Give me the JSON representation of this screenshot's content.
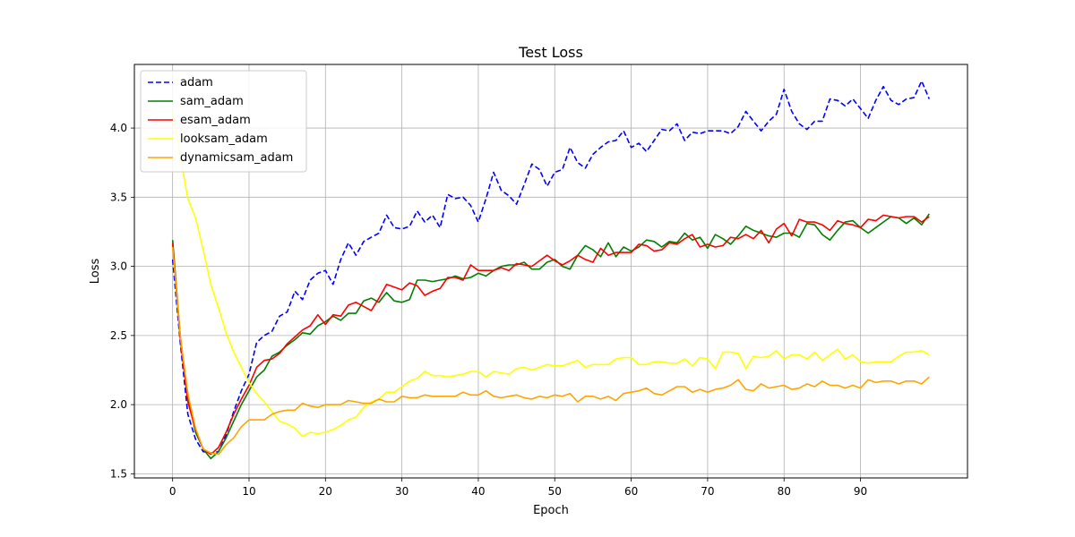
{
  "chart_data": {
    "type": "line",
    "title": "Test Loss",
    "xlabel": "Epoch",
    "ylabel": "Loss",
    "xlim": [
      -5,
      104
    ],
    "ylim": [
      1.47,
      4.46
    ],
    "xticks": [
      0,
      10,
      20,
      30,
      40,
      50,
      60,
      70,
      80,
      90
    ],
    "xtick_labels": [
      "0",
      "10",
      "20",
      "30",
      "40",
      "50",
      "60",
      "70",
      "80",
      "90"
    ],
    "yticks": [
      1.5,
      2.0,
      2.5,
      3.0,
      3.5,
      4.0
    ],
    "ytick_labels": [
      "1.5",
      "2.0",
      "2.5",
      "3.0",
      "3.5",
      "4.0"
    ],
    "grid": true,
    "legend_position": "upper-left",
    "series": [
      {
        "name": "adam",
        "color": "#0000ff",
        "style": "dashed",
        "values": [
          3.05,
          2.45,
          1.93,
          1.75,
          1.66,
          1.65,
          1.66,
          1.78,
          1.95,
          2.1,
          2.22,
          2.45,
          2.5,
          2.53,
          2.64,
          2.67,
          2.82,
          2.76,
          2.9,
          2.95,
          2.97,
          2.87,
          3.05,
          3.17,
          3.08,
          3.18,
          3.21,
          3.24,
          3.37,
          3.28,
          3.27,
          3.29,
          3.4,
          3.32,
          3.37,
          3.28,
          3.52,
          3.49,
          3.5,
          3.44,
          3.32,
          3.49,
          3.68,
          3.55,
          3.51,
          3.45,
          3.59,
          3.74,
          3.7,
          3.58,
          3.68,
          3.7,
          3.86,
          3.75,
          3.71,
          3.81,
          3.86,
          3.9,
          3.91,
          3.98,
          3.86,
          3.89,
          3.83,
          3.91,
          3.99,
          3.98,
          4.03,
          3.91,
          3.97,
          3.96,
          3.98,
          3.98,
          3.98,
          3.96,
          4.01,
          4.12,
          4.05,
          3.98,
          4.05,
          4.1,
          4.28,
          4.12,
          4.03,
          3.99,
          4.05,
          4.05,
          4.21,
          4.2,
          4.16,
          4.21,
          4.14,
          4.07,
          4.2,
          4.3,
          4.2,
          4.17,
          4.21,
          4.22,
          4.34,
          4.21
        ]
      },
      {
        "name": "sam_adam",
        "color": "#008000",
        "style": "solid",
        "values": [
          3.19,
          2.5,
          2.05,
          1.8,
          1.68,
          1.61,
          1.66,
          1.76,
          1.88,
          2.0,
          2.1,
          2.2,
          2.25,
          2.35,
          2.38,
          2.43,
          2.47,
          2.52,
          2.51,
          2.57,
          2.6,
          2.64,
          2.61,
          2.66,
          2.66,
          2.75,
          2.77,
          2.74,
          2.81,
          2.75,
          2.74,
          2.76,
          2.9,
          2.9,
          2.89,
          2.9,
          2.91,
          2.93,
          2.91,
          2.92,
          2.95,
          2.93,
          2.97,
          3.0,
          3.01,
          3.01,
          3.03,
          2.98,
          2.98,
          3.03,
          3.05,
          3.0,
          2.98,
          3.08,
          3.15,
          3.12,
          3.07,
          3.17,
          3.07,
          3.14,
          3.11,
          3.14,
          3.19,
          3.18,
          3.14,
          3.18,
          3.17,
          3.24,
          3.19,
          3.21,
          3.13,
          3.23,
          3.2,
          3.16,
          3.22,
          3.29,
          3.26,
          3.24,
          3.22,
          3.21,
          3.24,
          3.24,
          3.21,
          3.31,
          3.3,
          3.23,
          3.19,
          3.26,
          3.32,
          3.33,
          3.28,
          3.24,
          3.28,
          3.32,
          3.36,
          3.35,
          3.31,
          3.35,
          3.3,
          3.38
        ]
      },
      {
        "name": "esam_adam",
        "color": "#ff0000",
        "style": "solid",
        "values": [
          3.17,
          2.48,
          2.02,
          1.82,
          1.68,
          1.64,
          1.69,
          1.8,
          1.93,
          2.04,
          2.14,
          2.27,
          2.32,
          2.33,
          2.37,
          2.44,
          2.49,
          2.54,
          2.57,
          2.65,
          2.58,
          2.65,
          2.64,
          2.72,
          2.74,
          2.71,
          2.68,
          2.77,
          2.87,
          2.85,
          2.83,
          2.88,
          2.86,
          2.79,
          2.82,
          2.84,
          2.92,
          2.92,
          2.9,
          3.01,
          2.97,
          2.97,
          2.97,
          2.99,
          2.97,
          3.02,
          3.01,
          3.0,
          3.04,
          3.08,
          3.04,
          3.01,
          3.04,
          3.08,
          3.05,
          3.03,
          3.13,
          3.08,
          3.1,
          3.1,
          3.1,
          3.16,
          3.15,
          3.11,
          3.12,
          3.17,
          3.16,
          3.2,
          3.23,
          3.14,
          3.16,
          3.14,
          3.15,
          3.21,
          3.2,
          3.23,
          3.2,
          3.26,
          3.17,
          3.27,
          3.31,
          3.22,
          3.34,
          3.32,
          3.32,
          3.3,
          3.26,
          3.33,
          3.31,
          3.3,
          3.28,
          3.34,
          3.33,
          3.37,
          3.36,
          3.35,
          3.36,
          3.36,
          3.32,
          3.36
        ]
      },
      {
        "name": "looksam_adam",
        "color": "#ffff00",
        "style": "solid",
        "values": [
          4.12,
          3.8,
          3.49,
          3.35,
          3.12,
          2.87,
          2.7,
          2.52,
          2.38,
          2.27,
          2.16,
          2.08,
          2.02,
          1.95,
          1.88,
          1.86,
          1.83,
          1.77,
          1.8,
          1.79,
          1.8,
          1.82,
          1.85,
          1.89,
          1.91,
          1.98,
          2.02,
          2.04,
          2.09,
          2.09,
          2.13,
          2.17,
          2.19,
          2.24,
          2.21,
          2.21,
          2.2,
          2.21,
          2.22,
          2.24,
          2.24,
          2.2,
          2.24,
          2.23,
          2.22,
          2.26,
          2.27,
          2.25,
          2.27,
          2.29,
          2.28,
          2.28,
          2.3,
          2.32,
          2.27,
          2.29,
          2.29,
          2.29,
          2.33,
          2.34,
          2.34,
          2.29,
          2.29,
          2.31,
          2.31,
          2.3,
          2.3,
          2.33,
          2.28,
          2.34,
          2.33,
          2.26,
          2.38,
          2.38,
          2.37,
          2.26,
          2.35,
          2.34,
          2.35,
          2.39,
          2.33,
          2.36,
          2.36,
          2.33,
          2.38,
          2.32,
          2.36,
          2.4,
          2.33,
          2.36,
          2.31,
          2.3,
          2.31,
          2.31,
          2.31,
          2.35,
          2.38,
          2.38,
          2.39,
          2.36
        ]
      },
      {
        "name": "dynamicsam_adam",
        "color": "#ffa500",
        "style": "solid",
        "values": [
          3.14,
          2.5,
          2.08,
          1.83,
          1.68,
          1.65,
          1.64,
          1.71,
          1.76,
          1.84,
          1.89,
          1.89,
          1.89,
          1.93,
          1.95,
          1.96,
          1.96,
          2.01,
          1.99,
          1.98,
          2.0,
          2.0,
          2.0,
          2.03,
          2.02,
          2.01,
          2.01,
          2.04,
          2.02,
          2.02,
          2.06,
          2.05,
          2.05,
          2.07,
          2.06,
          2.06,
          2.06,
          2.06,
          2.09,
          2.07,
          2.07,
          2.1,
          2.06,
          2.05,
          2.06,
          2.07,
          2.05,
          2.04,
          2.06,
          2.05,
          2.07,
          2.06,
          2.08,
          2.02,
          2.06,
          2.06,
          2.04,
          2.06,
          2.03,
          2.08,
          2.09,
          2.1,
          2.12,
          2.08,
          2.07,
          2.1,
          2.13,
          2.13,
          2.09,
          2.11,
          2.09,
          2.11,
          2.12,
          2.14,
          2.18,
          2.11,
          2.1,
          2.15,
          2.12,
          2.13,
          2.14,
          2.11,
          2.12,
          2.15,
          2.13,
          2.17,
          2.14,
          2.14,
          2.12,
          2.14,
          2.12,
          2.18,
          2.16,
          2.17,
          2.17,
          2.15,
          2.17,
          2.17,
          2.15,
          2.2
        ]
      }
    ]
  }
}
